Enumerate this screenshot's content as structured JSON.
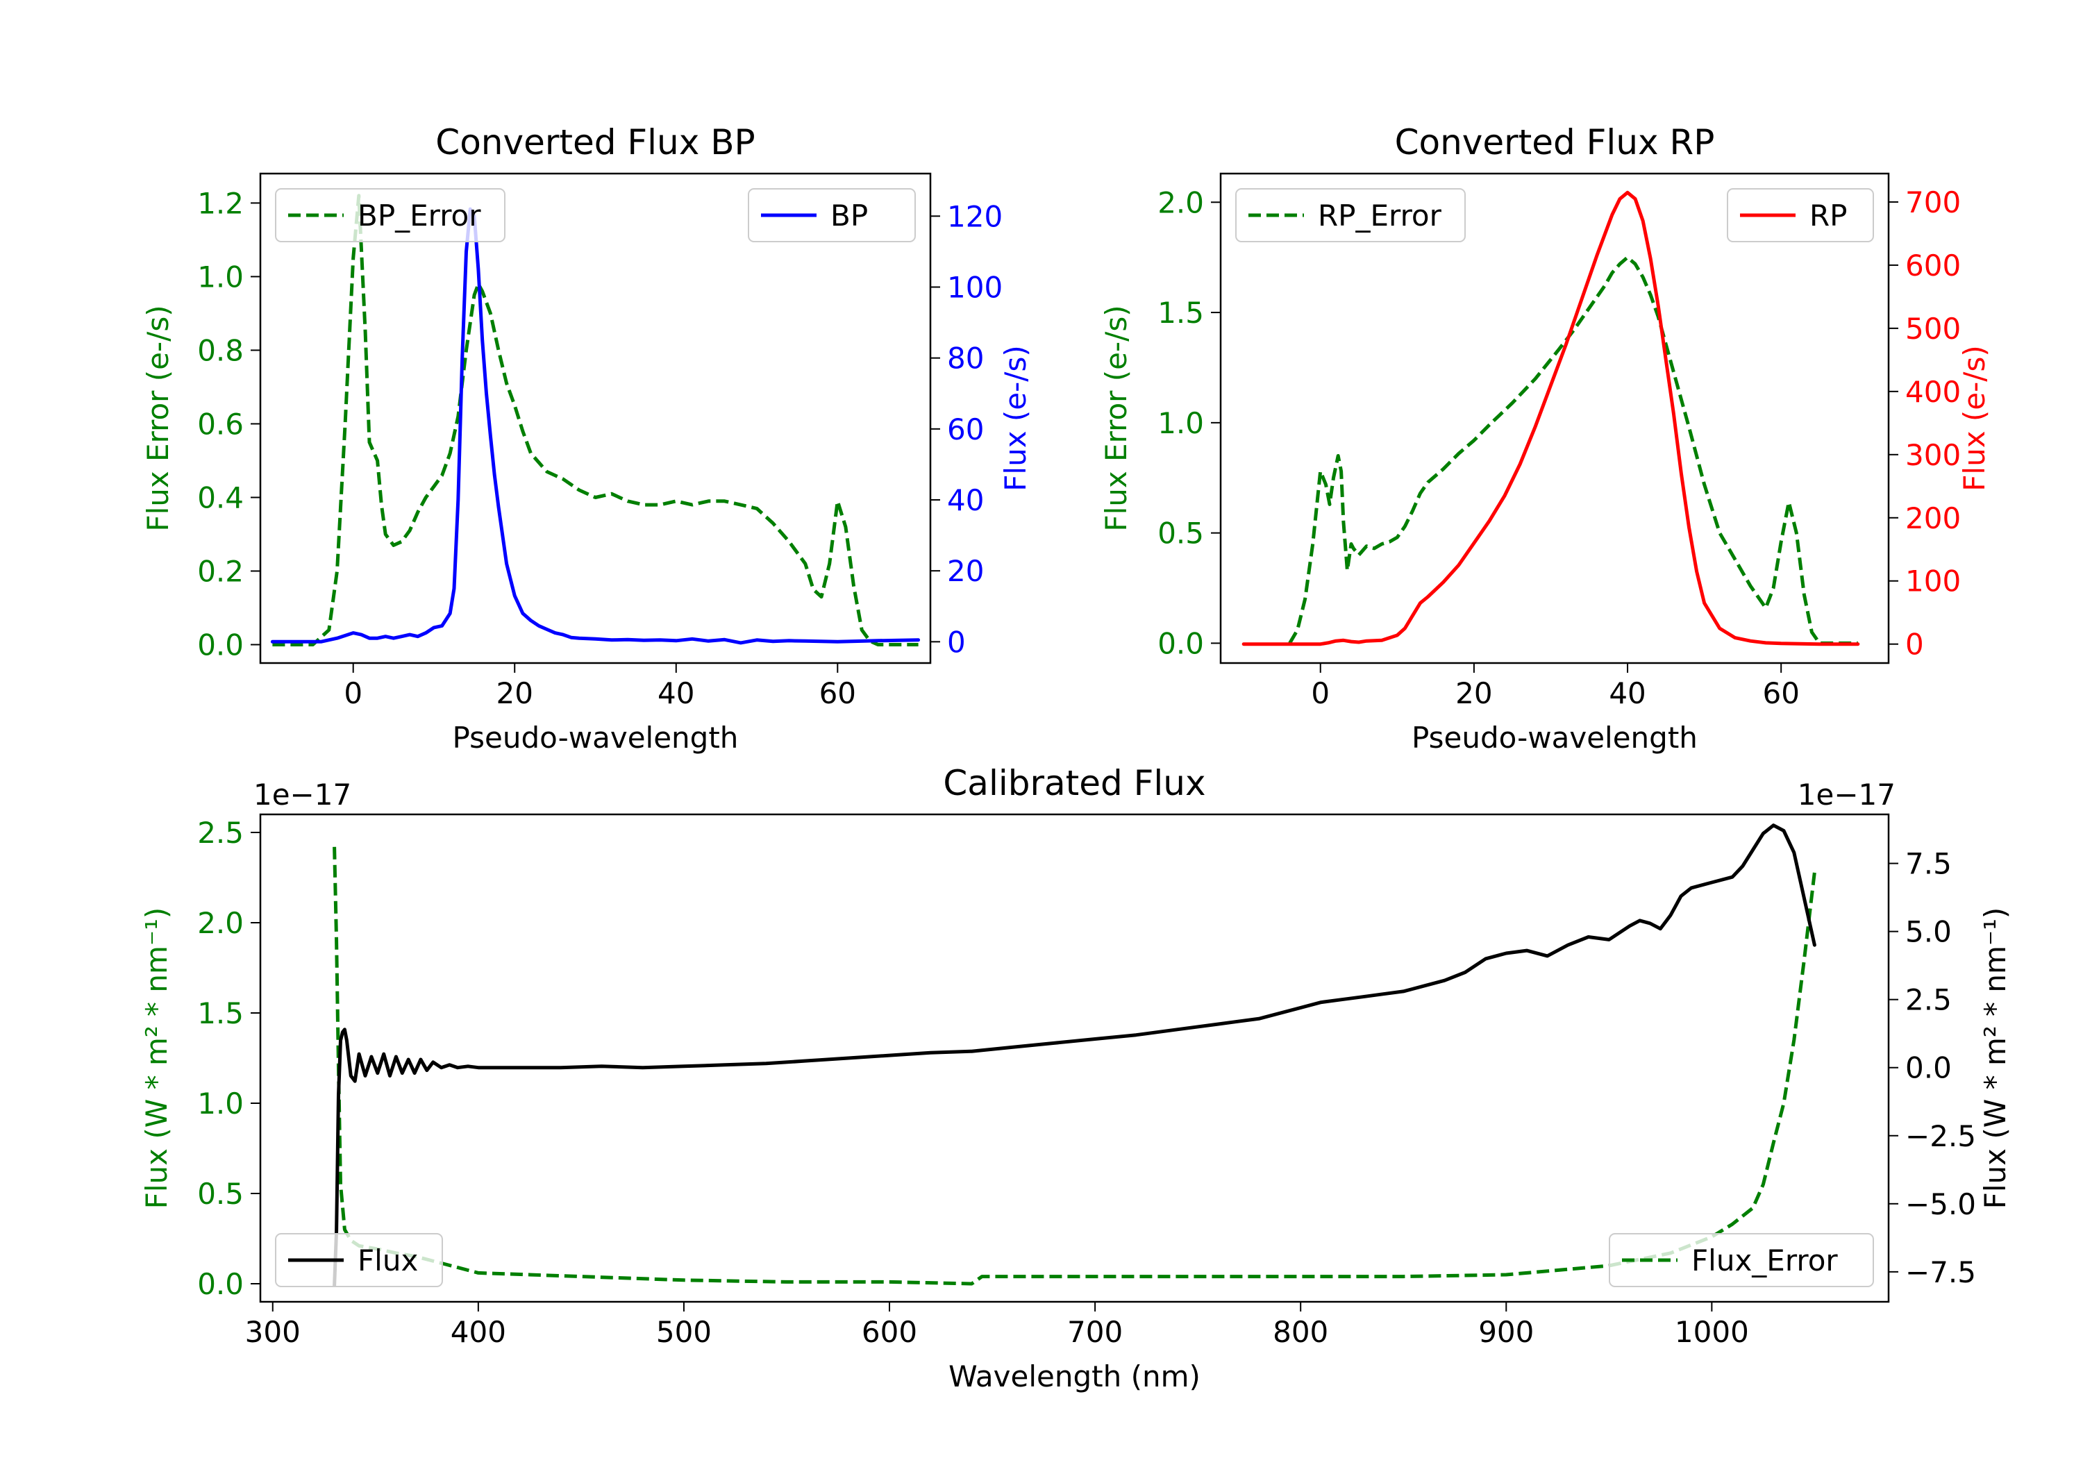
{
  "figure": {
    "background": "#ffffff"
  },
  "colors": {
    "green": "#007f00",
    "blue": "#0000ff",
    "red": "#ff0000",
    "black": "#000000"
  },
  "chart_data": [
    {
      "type": "line",
      "title": "Converted Flux BP",
      "xlabel": "Pseudo-wavelength",
      "xlim": [
        -11.5,
        71.5
      ],
      "x_ticks": [
        0,
        20,
        40,
        60
      ],
      "x_tick_labels": [
        "0",
        "20",
        "40",
        "60"
      ],
      "left_axis": {
        "label": "Flux Error (e-/s)",
        "color": "#007f00",
        "ylim": [
          -0.05,
          1.28
        ],
        "ticks": [
          0.0,
          0.2,
          0.4,
          0.6,
          0.8,
          1.0,
          1.2
        ],
        "tick_labels": [
          "0.0",
          "0.2",
          "0.4",
          "0.6",
          "0.8",
          "1.0",
          "1.2"
        ]
      },
      "right_axis": {
        "label": "Flux (e-/s)",
        "color": "#0000ff",
        "ylim": [
          -6,
          132
        ],
        "ticks": [
          0,
          20,
          40,
          60,
          80,
          100,
          120
        ],
        "tick_labels": [
          "0",
          "20",
          "40",
          "60",
          "80",
          "100",
          "120"
        ]
      },
      "legend_left": {
        "position": "upper-left",
        "label": "BP_Error"
      },
      "legend_right": {
        "position": "upper-right",
        "label": "BP"
      },
      "series": [
        {
          "name": "BP_Error",
          "axis": "left",
          "style": "dashed",
          "color": "#007f00",
          "x": [
            -10,
            -5,
            -3,
            -2,
            -1,
            0,
            0.7,
            1.5,
            2,
            3,
            3.5,
            4,
            5,
            6,
            7,
            8,
            9,
            10,
            11,
            12,
            13,
            14,
            15,
            15.5,
            16,
            17,
            18,
            19,
            20,
            21,
            22,
            24,
            26,
            28,
            30,
            32,
            34,
            36,
            38,
            40,
            42,
            44,
            46,
            48,
            50,
            52,
            54,
            56,
            57,
            58,
            59,
            60,
            61,
            62,
            63,
            64,
            65,
            68,
            70
          ],
          "y": [
            0.0,
            0.0,
            0.04,
            0.2,
            0.6,
            1.05,
            1.22,
            0.85,
            0.55,
            0.5,
            0.38,
            0.3,
            0.27,
            0.28,
            0.31,
            0.36,
            0.4,
            0.43,
            0.46,
            0.52,
            0.62,
            0.8,
            0.95,
            0.98,
            0.96,
            0.9,
            0.8,
            0.71,
            0.65,
            0.58,
            0.52,
            0.47,
            0.45,
            0.42,
            0.4,
            0.41,
            0.39,
            0.38,
            0.38,
            0.39,
            0.38,
            0.39,
            0.39,
            0.38,
            0.37,
            0.33,
            0.28,
            0.22,
            0.15,
            0.13,
            0.22,
            0.39,
            0.32,
            0.16,
            0.04,
            0.01,
            0.0,
            0.0,
            0.0
          ]
        },
        {
          "name": "BP",
          "axis": "right",
          "style": "solid",
          "color": "#0000ff",
          "x": [
            -10,
            -6,
            -4,
            -2,
            0,
            1,
            2,
            3,
            4,
            5,
            6,
            7,
            8,
            9,
            10,
            11,
            12,
            12.5,
            13,
            13.5,
            14,
            14.5,
            15,
            15.5,
            16,
            16.5,
            17,
            17.5,
            18,
            19,
            20,
            21,
            22,
            23,
            24,
            25,
            26,
            27,
            28,
            30,
            32,
            34,
            36,
            38,
            40,
            42,
            44,
            46,
            48,
            50,
            52,
            54,
            56,
            60,
            65,
            70
          ],
          "y": [
            0,
            0,
            0,
            1,
            2.5,
            2,
            1,
            1,
            1.5,
            1,
            1.5,
            2,
            1.5,
            2.5,
            4,
            4.5,
            8,
            15,
            40,
            80,
            110,
            122,
            120,
            105,
            85,
            70,
            58,
            47,
            38,
            22,
            13,
            8,
            6,
            4.5,
            3.5,
            2.5,
            2,
            1.2,
            1,
            0.8,
            0.5,
            0.6,
            0.4,
            0.5,
            0.3,
            0.8,
            0.2,
            0.6,
            -0.3,
            0.5,
            0.1,
            0.3,
            0.2,
            0,
            0.3,
            0.5
          ]
        }
      ]
    },
    {
      "type": "line",
      "title": "Converted Flux RP",
      "xlabel": "Pseudo-wavelength",
      "xlim": [
        -13,
        74
      ],
      "x_ticks": [
        0,
        20,
        40,
        60
      ],
      "x_tick_labels": [
        "0",
        "20",
        "40",
        "60"
      ],
      "left_axis": {
        "label": "Flux Error (e-/s)",
        "color": "#007f00",
        "ylim": [
          -0.09,
          2.13
        ],
        "ticks": [
          0.0,
          0.5,
          1.0,
          1.5,
          2.0
        ],
        "tick_labels": [
          "0.0",
          "0.5",
          "1.0",
          "1.5",
          "2.0"
        ]
      },
      "right_axis": {
        "label": "Flux (e-/s)",
        "color": "#ff0000",
        "ylim": [
          -30,
          745
        ],
        "ticks": [
          0,
          100,
          200,
          300,
          400,
          500,
          600,
          700
        ],
        "tick_labels": [
          "0",
          "100",
          "200",
          "300",
          "400",
          "500",
          "600",
          "700"
        ]
      },
      "legend_left": {
        "position": "upper-left",
        "label": "RP_Error"
      },
      "legend_right": {
        "position": "upper-right",
        "label": "RP"
      },
      "series": [
        {
          "name": "RP_Error",
          "axis": "left",
          "style": "dashed",
          "color": "#007f00",
          "x": [
            -4,
            -3,
            -2,
            -1,
            0,
            0.7,
            1.2,
            1.7,
            2.3,
            2.7,
            3,
            3.5,
            4,
            4.3,
            5,
            6,
            7,
            8,
            9,
            10,
            11,
            12,
            13,
            14,
            16,
            18,
            20,
            22,
            25,
            28,
            31,
            33,
            35,
            37,
            38,
            39,
            40,
            41,
            42,
            43,
            44,
            46,
            48,
            50,
            52,
            54,
            55,
            56,
            57,
            58,
            59,
            60,
            61,
            62,
            63,
            64,
            65,
            70
          ],
          "y": [
            0.0,
            0.06,
            0.2,
            0.45,
            0.78,
            0.72,
            0.63,
            0.75,
            0.85,
            0.78,
            0.55,
            0.33,
            0.45,
            0.43,
            0.4,
            0.44,
            0.43,
            0.45,
            0.46,
            0.48,
            0.53,
            0.6,
            0.68,
            0.73,
            0.79,
            0.86,
            0.92,
            0.99,
            1.09,
            1.2,
            1.33,
            1.42,
            1.52,
            1.62,
            1.68,
            1.72,
            1.75,
            1.72,
            1.66,
            1.58,
            1.48,
            1.23,
            0.98,
            0.72,
            0.5,
            0.38,
            0.32,
            0.26,
            0.21,
            0.16,
            0.25,
            0.46,
            0.64,
            0.5,
            0.22,
            0.05,
            0.0,
            0.0
          ]
        },
        {
          "name": "RP",
          "axis": "right",
          "style": "solid",
          "color": "#ff0000",
          "x": [
            -10,
            -5,
            0,
            1,
            2,
            3,
            4,
            5,
            6,
            8,
            10,
            11,
            12,
            13,
            14,
            16,
            18,
            20,
            22,
            24,
            26,
            28,
            30,
            32,
            34,
            36,
            38,
            39,
            40,
            41,
            42,
            43,
            44,
            45,
            46,
            47,
            48,
            49,
            50,
            52,
            54,
            56,
            58,
            60,
            65,
            70
          ],
          "y": [
            0,
            0,
            0,
            2,
            5,
            6,
            4,
            3,
            5,
            6,
            14,
            25,
            45,
            65,
            75,
            98,
            125,
            160,
            195,
            235,
            285,
            345,
            410,
            475,
            545,
            615,
            680,
            705,
            715,
            705,
            670,
            610,
            535,
            450,
            365,
            270,
            185,
            115,
            65,
            25,
            10,
            5,
            2,
            1,
            0,
            0
          ]
        }
      ]
    },
    {
      "type": "line",
      "title": "Calibrated Flux",
      "xlabel": "Wavelength (nm)",
      "xlim": [
        294,
        1086
      ],
      "x_ticks": [
        300,
        400,
        500,
        600,
        700,
        800,
        900,
        1000
      ],
      "x_tick_labels": [
        "300",
        "400",
        "500",
        "600",
        "700",
        "800",
        "900",
        "1000"
      ],
      "left_axis": {
        "label": "Flux (W * m² * nm⁻¹)",
        "color": "#007f00",
        "ylim": [
          -0.1,
          2.6
        ],
        "ticks": [
          0.0,
          0.5,
          1.0,
          1.5,
          2.0,
          2.5
        ],
        "tick_labels": [
          "0.0",
          "0.5",
          "1.0",
          "1.5",
          "2.0",
          "2.5"
        ],
        "offset_text": "1e−17"
      },
      "right_axis": {
        "label": "Flux (W * m² * nm⁻¹)",
        "color": "#000000",
        "ylim": [
          -8.6,
          9.3
        ],
        "ticks": [
          -7.5,
          -5.0,
          -2.5,
          0.0,
          2.5,
          5.0,
          7.5
        ],
        "tick_labels": [
          "−7.5",
          "−5.0",
          "−2.5",
          "0.0",
          "2.5",
          "5.0",
          "7.5"
        ],
        "offset_text": "1e−17"
      },
      "legend_left": {
        "position": "lower-left",
        "label": "Flux"
      },
      "legend_right": {
        "position": "lower-right",
        "label": "Flux_Error"
      },
      "series": [
        {
          "name": "Flux_Error",
          "axis": "left",
          "style": "dashed",
          "color": "#007f00",
          "x": [
            330,
            331,
            332,
            333,
            335,
            338,
            342,
            347,
            352,
            360,
            370,
            380,
            390,
            400,
            450,
            500,
            550,
            600,
            640,
            645,
            700,
            750,
            800,
            850,
            900,
            950,
            980,
            1000,
            1010,
            1020,
            1025,
            1030,
            1035,
            1040,
            1045,
            1050
          ],
          "y": [
            2.42,
            1.9,
            1.2,
            0.55,
            0.3,
            0.24,
            0.21,
            0.2,
            0.19,
            0.17,
            0.15,
            0.12,
            0.09,
            0.06,
            0.04,
            0.02,
            0.01,
            0.01,
            0.0,
            0.04,
            0.04,
            0.04,
            0.04,
            0.04,
            0.05,
            0.1,
            0.17,
            0.26,
            0.33,
            0.42,
            0.55,
            0.78,
            1.0,
            1.35,
            1.8,
            2.28
          ]
        },
        {
          "name": "Flux",
          "axis": "right",
          "style": "solid",
          "color": "#000000",
          "x": [
            330,
            331,
            332,
            333,
            334,
            335,
            336,
            338,
            340,
            342,
            345,
            348,
            351,
            354,
            357,
            360,
            363,
            366,
            369,
            372,
            375,
            378,
            382,
            386,
            390,
            395,
            400,
            420,
            440,
            460,
            480,
            500,
            520,
            540,
            560,
            580,
            600,
            620,
            640,
            660,
            680,
            700,
            720,
            740,
            760,
            780,
            800,
            810,
            820,
            830,
            840,
            850,
            860,
            870,
            880,
            890,
            900,
            910,
            920,
            930,
            940,
            950,
            960,
            965,
            970,
            975,
            980,
            985,
            990,
            1000,
            1010,
            1015,
            1020,
            1025,
            1030,
            1035,
            1040,
            1045,
            1050
          ],
          "y": [
            -8.0,
            -6.0,
            -1.0,
            1.0,
            1.3,
            1.4,
            1.0,
            -0.3,
            -0.5,
            0.5,
            -0.3,
            0.4,
            -0.2,
            0.5,
            -0.3,
            0.4,
            -0.2,
            0.3,
            -0.2,
            0.3,
            -0.1,
            0.2,
            0.0,
            0.1,
            0.0,
            0.05,
            0.0,
            0.0,
            0.0,
            0.05,
            0.0,
            0.05,
            0.1,
            0.15,
            0.25,
            0.35,
            0.45,
            0.55,
            0.6,
            0.75,
            0.9,
            1.05,
            1.2,
            1.4,
            1.6,
            1.8,
            2.2,
            2.4,
            2.5,
            2.6,
            2.7,
            2.8,
            3.0,
            3.2,
            3.5,
            4.0,
            4.2,
            4.3,
            4.1,
            4.5,
            4.8,
            4.7,
            5.2,
            5.4,
            5.3,
            5.1,
            5.6,
            6.3,
            6.6,
            6.8,
            7.0,
            7.4,
            8.0,
            8.6,
            8.9,
            8.7,
            7.9,
            6.2,
            4.5
          ]
        }
      ]
    }
  ]
}
